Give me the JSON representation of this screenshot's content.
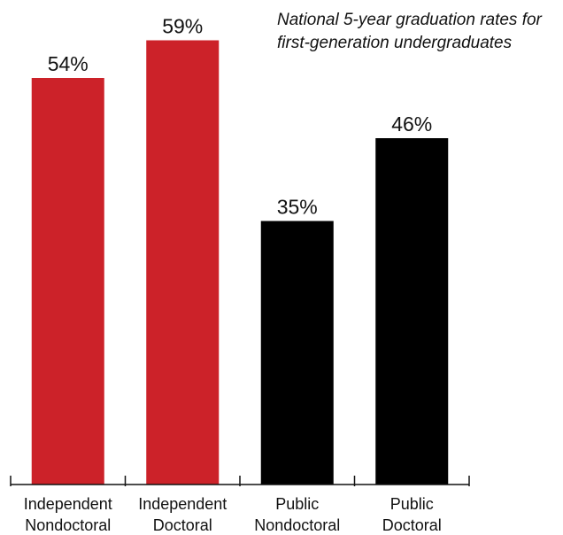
{
  "chart_data": {
    "type": "bar",
    "title_lines": [
      "National 5-year graduation rates for",
      "first-generation undergraduates"
    ],
    "categories": [
      [
        "Independent",
        "Nondoctoral"
      ],
      [
        "Independent",
        "Doctoral"
      ],
      [
        "Public",
        "Nondoctoral"
      ],
      [
        "Public",
        "Doctoral"
      ]
    ],
    "values": [
      54,
      59,
      35,
      46
    ],
    "value_labels": [
      "54%",
      "59%",
      "35%",
      "46%"
    ],
    "colors": [
      "#cc2229",
      "#cc2229",
      "#000000",
      "#000000"
    ],
    "ylim": [
      0,
      65
    ],
    "grid": false,
    "legend": "none"
  }
}
